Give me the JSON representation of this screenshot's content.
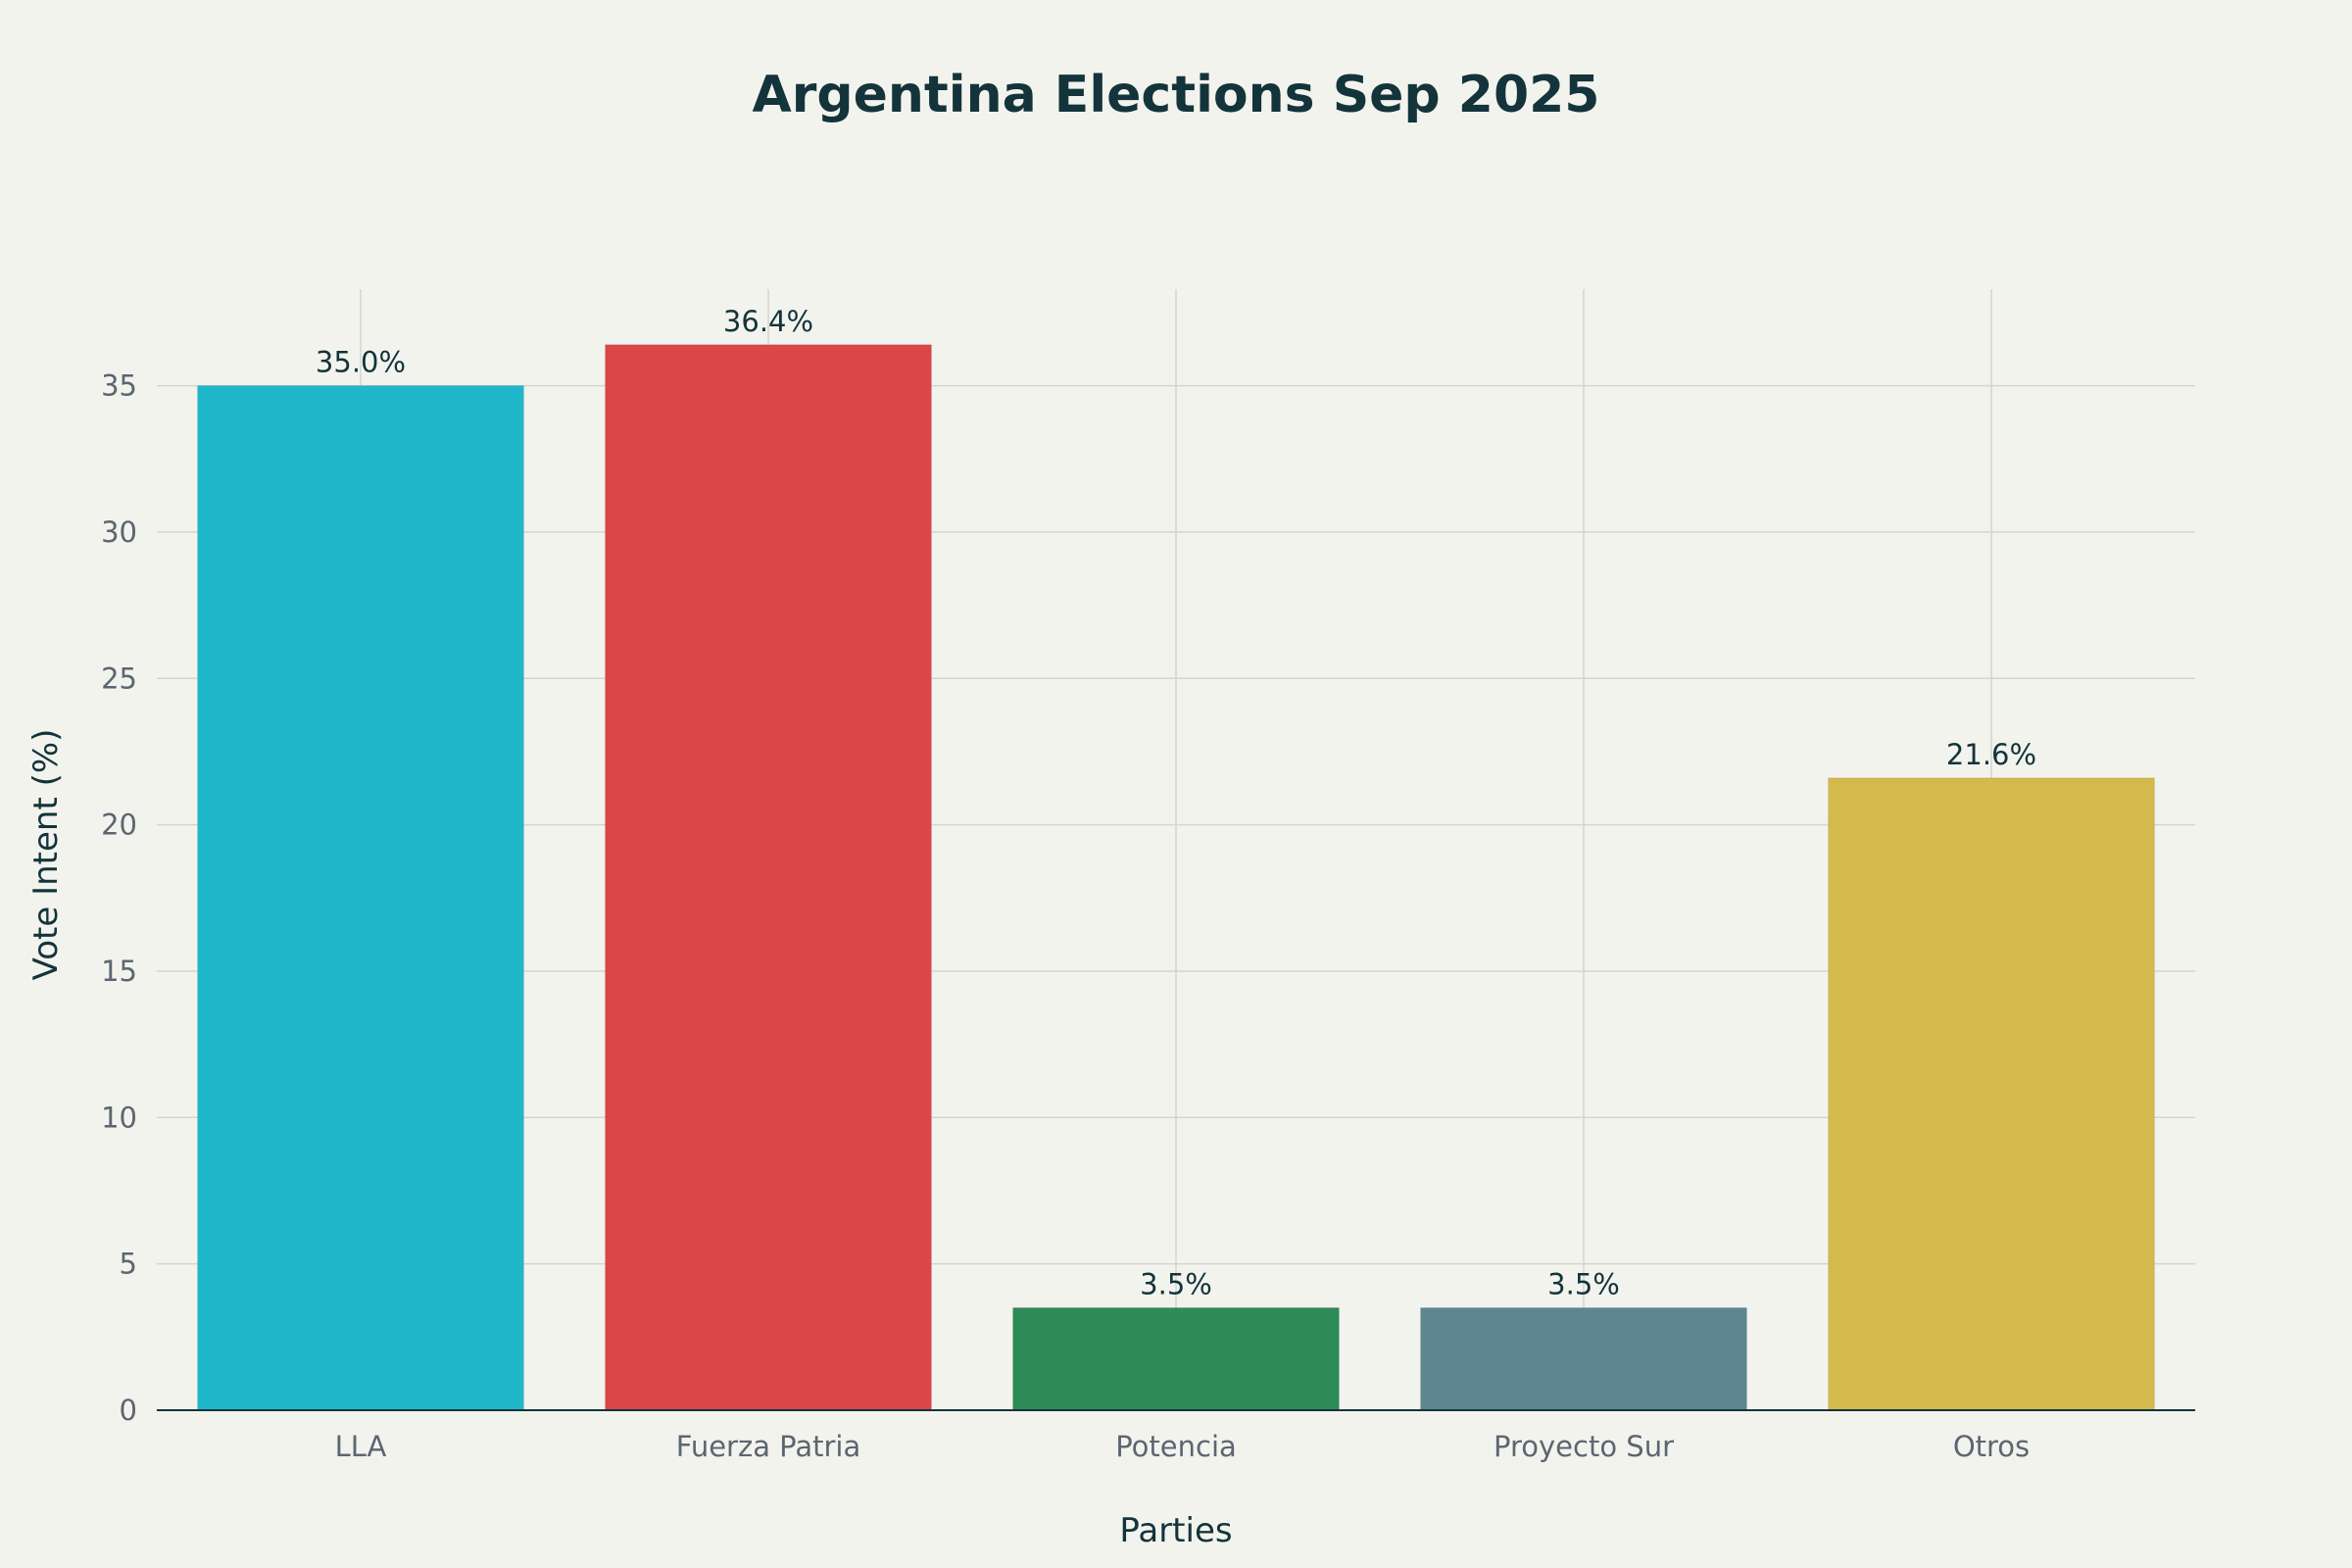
{
  "chart_data": {
    "type": "bar",
    "title": "Argentina Elections Sep 2025",
    "xlabel": "Parties",
    "ylabel": "Vote Intent (%)",
    "categories": [
      "LLA",
      "Fuerza Patria",
      "Potencia",
      "Proyecto Sur",
      "Otros"
    ],
    "values": [
      35.0,
      36.4,
      3.5,
      3.5,
      21.6
    ],
    "data_labels": [
      "35.0%",
      "36.4%",
      "3.5%",
      "3.5%",
      "21.6%"
    ],
    "colors": [
      "#21b7cb",
      "#db4646",
      "#2e8a57",
      "#5e8690",
      "#d4b94c"
    ],
    "ylim": [
      0,
      38.3
    ],
    "yticks": [
      0,
      5,
      10,
      15,
      20,
      25,
      30,
      35
    ],
    "grid": true,
    "legend": "none"
  }
}
